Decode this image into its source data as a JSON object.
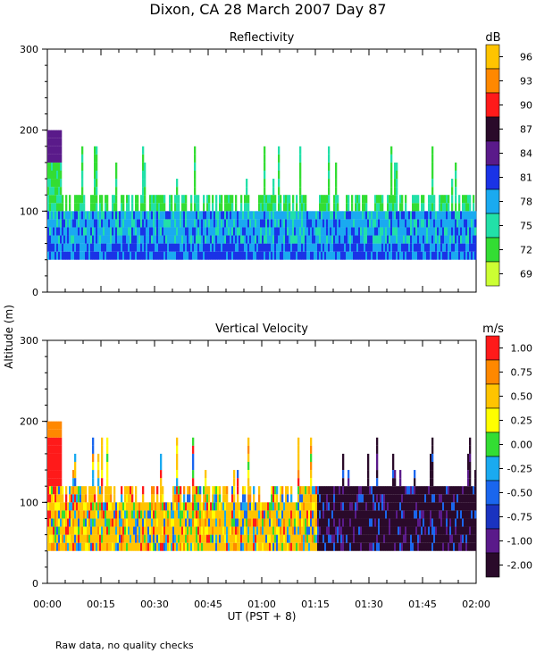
{
  "figure_title": "Dixon, CA 28 March 2007  Day  87",
  "y_axis_label": "Altitude (m)",
  "x_axis_label": "UT  (PST + 8)",
  "footnote": "Raw data, no quality checks",
  "x_ticks": [
    "00:00",
    "00:15",
    "00:30",
    "00:45",
    "01:00",
    "01:15",
    "01:30",
    "01:45",
    "02:00"
  ],
  "chart_data": [
    {
      "type": "heatmap",
      "title": "Reflectivity",
      "xlabel": "UT  (PST + 8)",
      "ylabel": "Altitude (m)",
      "xlim": [
        0,
        120
      ],
      "ylim": [
        0,
        300
      ],
      "y_ticks": [
        0,
        100,
        200,
        300
      ],
      "colorbar": {
        "unit": "dB",
        "labels": [
          "96",
          "93",
          "90",
          "87",
          "84",
          "81",
          "78",
          "75",
          "72",
          "69"
        ],
        "colors": [
          "#ffc400",
          "#ff8800",
          "#ff1a1a",
          "#2a0a2a",
          "#5a1a8a",
          "#1a33e6",
          "#1aaaf0",
          "#22e0a8",
          "#33dd33",
          "#ccff33"
        ]
      },
      "range_gate_bottom_m": 40,
      "typical_echo_top_m": 120,
      "spike_tops_m": [
        200,
        180,
        160,
        140
      ],
      "dominant_values_dB": [
        75,
        78,
        81
      ]
    },
    {
      "type": "heatmap",
      "title": "Vertical Velocity",
      "xlabel": "UT  (PST + 8)",
      "ylabel": "Altitude (m)",
      "xlim": [
        0,
        120
      ],
      "ylim": [
        0,
        300
      ],
      "y_ticks": [
        0,
        100,
        200,
        300
      ],
      "colorbar": {
        "unit": "m/s",
        "labels": [
          "1.00",
          "0.75",
          "0.50",
          "0.25",
          "0.00",
          "-0.25",
          "-0.50",
          "-0.75",
          "-1.00",
          "-2.00"
        ],
        "colors": [
          "#ff1a1a",
          "#ff8800",
          "#ffc400",
          "#ffff00",
          "#33dd33",
          "#1aaaf0",
          "#1a66ee",
          "#1a33c0",
          "#5a1a8a",
          "#2a0a2a"
        ]
      },
      "range_gate_bottom_m": 40,
      "typical_echo_top_m": 120,
      "dominant_values_ms": [
        "0.50",
        "-2.00"
      ]
    }
  ]
}
